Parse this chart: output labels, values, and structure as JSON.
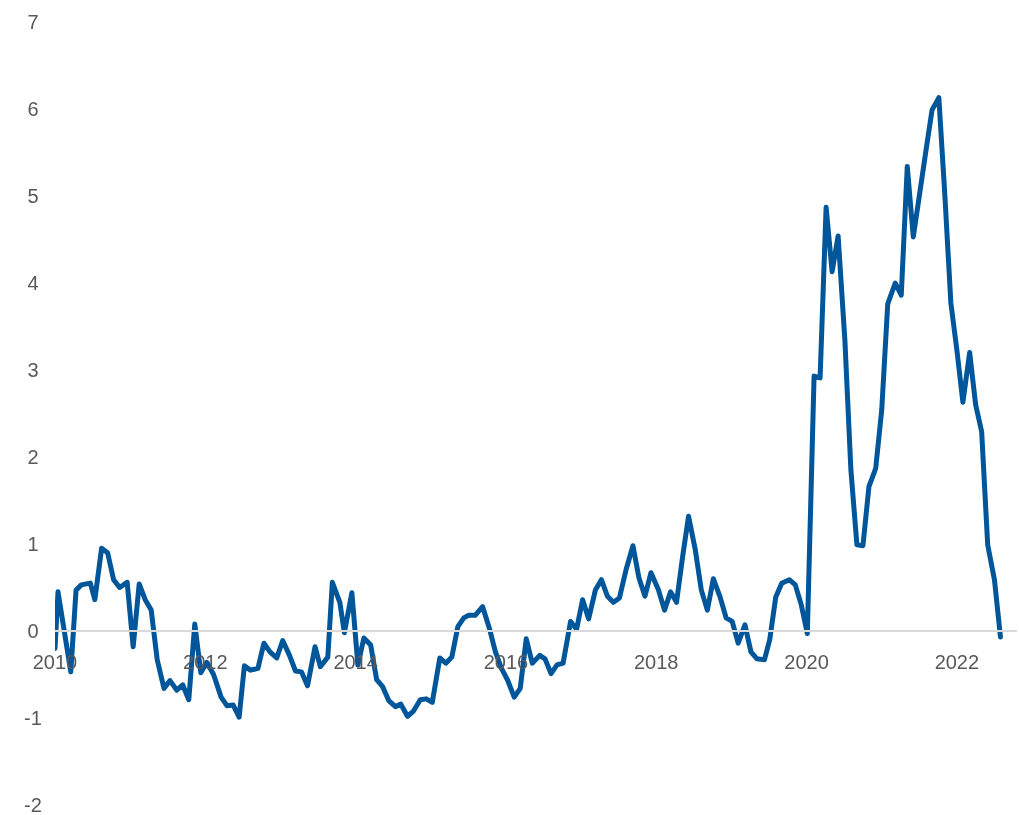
{
  "chart_data": {
    "type": "line",
    "x": [
      2010.0,
      2010.04,
      2010.21,
      2010.28,
      2010.35,
      2010.47,
      2010.53,
      2010.62,
      2010.7,
      2010.78,
      2010.86,
      2010.96,
      2011.04,
      2011.12,
      2011.2,
      2011.28,
      2011.36,
      2011.45,
      2011.53,
      2011.62,
      2011.7,
      2011.78,
      2011.86,
      2011.94,
      2012.02,
      2012.11,
      2012.21,
      2012.29,
      2012.37,
      2012.45,
      2012.52,
      2012.6,
      2012.7,
      2012.78,
      2012.86,
      2012.95,
      2013.03,
      2013.12,
      2013.2,
      2013.28,
      2013.36,
      2013.46,
      2013.53,
      2013.63,
      2013.69,
      2013.79,
      2013.85,
      2013.95,
      2014.03,
      2014.11,
      2014.2,
      2014.28,
      2014.36,
      2014.44,
      2014.53,
      2014.6,
      2014.69,
      2014.77,
      2014.86,
      2014.94,
      2015.02,
      2015.12,
      2015.2,
      2015.28,
      2015.36,
      2015.44,
      2015.5,
      2015.59,
      2015.69,
      2015.78,
      2015.86,
      2015.94,
      2016.02,
      2016.11,
      2016.19,
      2016.27,
      2016.35,
      2016.45,
      2016.52,
      2016.6,
      2016.68,
      2016.76,
      2016.86,
      2016.94,
      2017.02,
      2017.1,
      2017.19,
      2017.27,
      2017.35,
      2017.43,
      2017.51,
      2017.6,
      2017.69,
      2017.77,
      2017.85,
      2017.93,
      2018.03,
      2018.11,
      2018.19,
      2018.27,
      2018.35,
      2018.43,
      2018.52,
      2018.6,
      2018.68,
      2018.76,
      2018.85,
      2018.93,
      2019.01,
      2019.09,
      2019.18,
      2019.26,
      2019.34,
      2019.44,
      2019.51,
      2019.59,
      2019.67,
      2019.77,
      2019.85,
      2019.93,
      2020.01,
      2020.1,
      2020.18,
      2020.26,
      2020.34,
      2020.42,
      2020.51,
      2020.59,
      2020.67,
      2020.75,
      2020.83,
      2020.92,
      2021.0,
      2021.08,
      2021.18,
      2021.26,
      2021.34,
      2021.42,
      2021.49,
      2021.59,
      2021.67,
      2021.76,
      2021.84,
      2021.92,
      2022.0,
      2022.08,
      2022.17,
      2022.25,
      2022.33,
      2022.41,
      2022.5,
      2022.58
    ],
    "series": [
      {
        "color": "#00569a",
        "values": [
          -0.2,
          0.45,
          -0.47,
          0.47,
          0.53,
          0.55,
          0.36,
          0.95,
          0.9,
          0.59,
          0.5,
          0.56,
          -0.18,
          0.54,
          0.36,
          0.24,
          -0.33,
          -0.66,
          -0.57,
          -0.68,
          -0.62,
          -0.79,
          0.08,
          -0.48,
          -0.36,
          -0.5,
          -0.76,
          -0.86,
          -0.85,
          -0.99,
          -0.4,
          -0.45,
          -0.43,
          -0.14,
          -0.24,
          -0.31,
          -0.11,
          -0.28,
          -0.46,
          -0.47,
          -0.63,
          -0.18,
          -0.41,
          -0.3,
          0.56,
          0.33,
          -0.02,
          0.44,
          -0.39,
          -0.08,
          -0.16,
          -0.56,
          -0.64,
          -0.8,
          -0.87,
          -0.84,
          -0.98,
          -0.92,
          -0.79,
          -0.78,
          -0.82,
          -0.31,
          -0.37,
          -0.3,
          0.05,
          0.15,
          0.18,
          0.18,
          0.28,
          0.03,
          -0.24,
          -0.43,
          -0.56,
          -0.76,
          -0.66,
          -0.09,
          -0.37,
          -0.28,
          -0.32,
          -0.49,
          -0.39,
          -0.37,
          0.11,
          0.02,
          0.36,
          0.14,
          0.47,
          0.59,
          0.4,
          0.33,
          0.38,
          0.71,
          0.98,
          0.61,
          0.4,
          0.67,
          0.47,
          0.24,
          0.45,
          0.33,
          0.85,
          1.32,
          0.93,
          0.47,
          0.24,
          0.6,
          0.39,
          0.15,
          0.11,
          -0.14,
          0.07,
          -0.24,
          -0.32,
          -0.33,
          -0.1,
          0.39,
          0.55,
          0.59,
          0.53,
          0.3,
          -0.03,
          2.93,
          2.91,
          4.87,
          4.13,
          4.54,
          3.34,
          1.85,
          0.99,
          0.98,
          1.66,
          1.87,
          2.54,
          3.76,
          4.0,
          3.86,
          5.34,
          4.53,
          4.94,
          5.53,
          5.99,
          6.13,
          5.01,
          3.77,
          3.23,
          2.63,
          3.2,
          2.6,
          2.29,
          0.99,
          0.59,
          -0.07
        ]
      }
    ],
    "xlim": [
      2010,
      2022.8
    ],
    "xticks": [
      2010,
      2012,
      2014,
      2016,
      2018,
      2020,
      2022
    ],
    "ylim": [
      -2,
      7
    ],
    "yticks": [
      -2,
      -1,
      0,
      1,
      2,
      3,
      4,
      5,
      6,
      7
    ],
    "grid": false,
    "legend": false,
    "marker": "none",
    "line_style": "solid"
  }
}
